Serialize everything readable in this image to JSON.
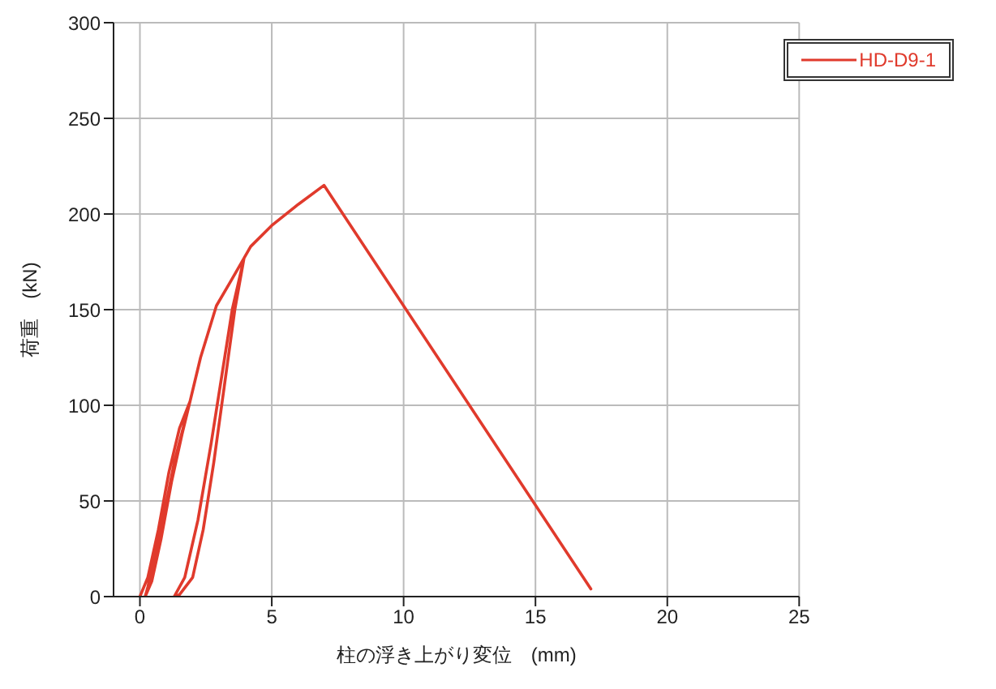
{
  "chart_data": {
    "type": "line",
    "xlabel": "柱の浮き上がり変位　(mm)",
    "ylabel": "荷重　(kN)",
    "xlim": [
      -1,
      25
    ],
    "xticks": [
      0,
      5,
      10,
      15,
      20,
      25
    ],
    "ylim": [
      0,
      300
    ],
    "yticks": [
      0,
      50,
      100,
      150,
      200,
      250,
      300
    ],
    "grid": true,
    "legend": "top right",
    "marker": "none",
    "line_style": "solid",
    "series": [
      {
        "name": "HD-D9-1",
        "color": "#e03a2c",
        "x": [
          0,
          0.3,
          0.7,
          1.1,
          1.5,
          1.9,
          1.6,
          1.2,
          0.8,
          0.45,
          0.2,
          0.3,
          0.8,
          1.3,
          1.9,
          2.3,
          2.9,
          3.45,
          3.95,
          3.6,
          3.2,
          2.8,
          2.4,
          2.0,
          1.5,
          1.3,
          1.7,
          2.2,
          2.7,
          3.1,
          3.5,
          3.95,
          4.2,
          5.0,
          6.0,
          6.98,
          17.1
        ],
        "values": [
          0,
          10,
          35,
          65,
          88,
          102,
          85,
          60,
          30,
          8,
          0,
          5,
          35,
          70,
          102,
          125,
          152,
          165,
          177,
          150,
          110,
          70,
          35,
          10,
          1,
          0,
          10,
          40,
          80,
          115,
          150,
          177,
          183,
          194,
          205,
          215,
          4
        ]
      }
    ]
  }
}
